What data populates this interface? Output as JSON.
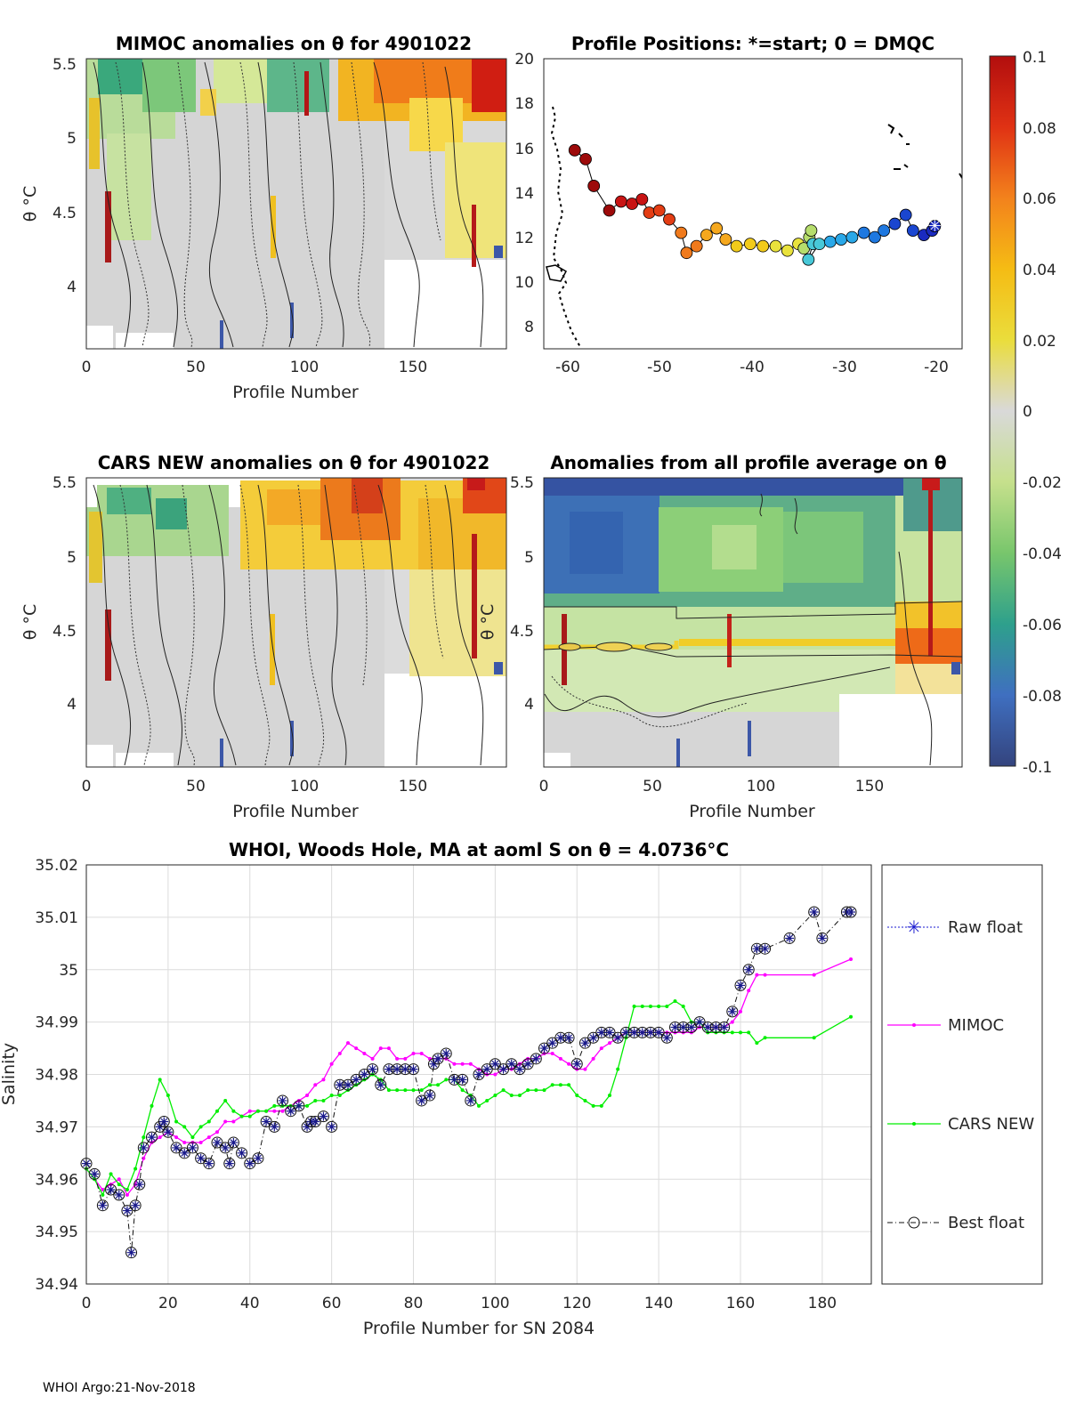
{
  "panels": {
    "mimoc": {
      "title": "MIMOC anomalies on θ  for 4901022",
      "ylabel": "θ °C",
      "xlabel": "Profile Number",
      "yticks": [
        "5.5",
        "5",
        "4.5",
        "4"
      ],
      "xticks": [
        "0",
        "50",
        "100",
        "150"
      ]
    },
    "positions": {
      "title": "Profile Positions: *=start; 0 = DMQC",
      "xticks": [
        "-60",
        "-50",
        "-40",
        "-30",
        "-20"
      ],
      "yticks": [
        "20",
        "18",
        "16",
        "14",
        "12",
        "10",
        "8"
      ],
      "track": [
        [
          -59.6,
          15.9
        ],
        [
          -58.4,
          15.5
        ],
        [
          -57.5,
          14.3
        ],
        [
          -55.8,
          13.2
        ],
        [
          -54.5,
          13.6
        ],
        [
          -53.3,
          13.5
        ],
        [
          -52.2,
          13.7
        ],
        [
          -51.4,
          13.1
        ],
        [
          -50.3,
          13.2
        ],
        [
          -49.2,
          12.8
        ],
        [
          -47.9,
          12.2
        ],
        [
          -47.3,
          11.3
        ],
        [
          -46.2,
          11.6
        ],
        [
          -45.1,
          12.1
        ],
        [
          -44.0,
          12.4
        ],
        [
          -43.0,
          11.9
        ],
        [
          -41.8,
          11.6
        ],
        [
          -40.3,
          11.7
        ],
        [
          -38.9,
          11.6
        ],
        [
          -37.5,
          11.6
        ],
        [
          -36.2,
          11.4
        ],
        [
          -35.0,
          11.7
        ],
        [
          -34.4,
          11.5
        ],
        [
          -33.8,
          12.0
        ],
        [
          -33.6,
          12.3
        ],
        [
          -33.4,
          11.7
        ],
        [
          -33.9,
          11.0
        ],
        [
          -32.7,
          11.7
        ],
        [
          -31.5,
          11.8
        ],
        [
          -30.3,
          11.9
        ],
        [
          -29.1,
          12.0
        ],
        [
          -27.8,
          12.2
        ],
        [
          -26.6,
          12.0
        ],
        [
          -25.6,
          12.3
        ],
        [
          -24.4,
          12.6
        ],
        [
          -23.2,
          13.0
        ],
        [
          -22.4,
          12.3
        ],
        [
          -21.2,
          12.1
        ],
        [
          -20.3,
          12.3
        ],
        [
          -20.0,
          12.5
        ]
      ]
    },
    "colorbar": {
      "ticks": [
        "0.1",
        "0.08",
        "0.06",
        "0.04",
        "0.02",
        "0",
        "-0.02",
        "-0.04",
        "-0.06",
        "-0.08",
        "-0.1"
      ]
    },
    "cars": {
      "title": "CARS NEW anomalies on θ for 4901022",
      "ylabel": "θ °C",
      "xlabel": "Profile Number",
      "yticks": [
        "5.5",
        "5",
        "4.5",
        "4"
      ],
      "xticks": [
        "0",
        "50",
        "100",
        "150"
      ]
    },
    "avg": {
      "title": "Anomalies from all profile average on θ",
      "ylabel": "θ °C",
      "xlabel": "Profile Number",
      "yticks": [
        "5.5",
        "5",
        "4.5",
        "4"
      ],
      "xticks": [
        "0",
        "50",
        "100",
        "150"
      ]
    }
  },
  "chart_data": {
    "type": "line",
    "title": "WHOI, Woods Hole, MA at aoml S on θ = 4.0736°C",
    "xlabel": "Profile Number for SN 2084",
    "ylabel": "Salinity",
    "xlim": [
      0,
      192
    ],
    "ylim": [
      34.94,
      35.02
    ],
    "xticks": [
      "0",
      "20",
      "40",
      "60",
      "80",
      "100",
      "120",
      "140",
      "160",
      "180"
    ],
    "yticks": [
      "35.02",
      "35.01",
      "35",
      "34.99",
      "34.98",
      "34.97",
      "34.96",
      "34.95",
      "34.94"
    ],
    "legend": [
      "Raw float",
      "MIMOC",
      "CARS NEW",
      "Best float"
    ],
    "series": [
      {
        "name": "Raw float / Best float",
        "color": "#1a1a8c",
        "x": [
          0,
          2,
          4,
          6,
          8,
          10,
          11,
          12,
          13,
          14,
          16,
          18,
          19,
          20,
          22,
          24,
          26,
          28,
          30,
          32,
          34,
          35,
          36,
          38,
          40,
          42,
          44,
          46,
          48,
          50,
          52,
          54,
          55,
          56,
          58,
          60,
          62,
          64,
          66,
          68,
          70,
          72,
          74,
          76,
          78,
          80,
          82,
          84,
          85,
          86,
          88,
          90,
          92,
          94,
          96,
          98,
          100,
          102,
          104,
          106,
          108,
          110,
          112,
          114,
          116,
          118,
          120,
          122,
          124,
          126,
          128,
          130,
          132,
          134,
          136,
          138,
          140,
          142,
          144,
          146,
          148,
          150,
          152,
          154,
          156,
          158,
          160,
          162,
          164,
          166,
          172,
          178,
          180,
          186,
          187
        ],
        "y": [
          34.963,
          34.961,
          34.955,
          34.958,
          34.957,
          34.954,
          34.946,
          34.955,
          34.959,
          34.966,
          34.968,
          34.97,
          34.971,
          34.969,
          34.966,
          34.965,
          34.966,
          34.964,
          34.963,
          34.967,
          34.966,
          34.963,
          34.967,
          34.965,
          34.963,
          34.964,
          34.971,
          34.97,
          34.975,
          34.973,
          34.974,
          34.97,
          34.971,
          34.971,
          34.972,
          34.97,
          34.978,
          34.978,
          34.979,
          34.98,
          34.981,
          34.978,
          34.981,
          34.981,
          34.981,
          34.981,
          34.975,
          34.976,
          34.982,
          34.983,
          34.984,
          34.979,
          34.979,
          34.975,
          34.98,
          34.981,
          34.982,
          34.981,
          34.982,
          34.981,
          34.982,
          34.983,
          34.985,
          34.986,
          34.987,
          34.987,
          34.982,
          34.986,
          34.987,
          34.988,
          34.988,
          34.987,
          34.988,
          34.988,
          34.988,
          34.988,
          34.988,
          34.987,
          34.989,
          34.989,
          34.989,
          34.99,
          34.989,
          34.989,
          34.989,
          34.992,
          34.997,
          35.0,
          35.004,
          35.004,
          35.006,
          35.011,
          35.006,
          35.011,
          35.011
        ]
      },
      {
        "name": "MIMOC",
        "color": "#ff00ff",
        "x": [
          0,
          2,
          4,
          6,
          8,
          10,
          12,
          14,
          16,
          18,
          20,
          22,
          24,
          26,
          28,
          30,
          32,
          34,
          36,
          38,
          40,
          42,
          44,
          46,
          48,
          50,
          52,
          54,
          56,
          58,
          60,
          62,
          64,
          66,
          68,
          70,
          72,
          74,
          76,
          78,
          80,
          82,
          84,
          86,
          88,
          90,
          92,
          94,
          96,
          98,
          100,
          102,
          104,
          106,
          108,
          110,
          112,
          114,
          116,
          118,
          120,
          122,
          124,
          126,
          128,
          130,
          132,
          134,
          136,
          138,
          140,
          142,
          144,
          146,
          148,
          150,
          152,
          154,
          156,
          158,
          160,
          162,
          164,
          166,
          178,
          187
        ],
        "y": [
          34.962,
          34.96,
          34.958,
          34.959,
          34.96,
          34.957,
          34.959,
          34.964,
          34.967,
          34.968,
          34.969,
          34.968,
          34.967,
          34.967,
          34.967,
          34.968,
          34.969,
          34.971,
          34.971,
          34.972,
          34.973,
          34.973,
          34.973,
          34.973,
          34.973,
          34.974,
          34.975,
          34.976,
          34.978,
          34.979,
          34.982,
          34.984,
          34.986,
          34.985,
          34.984,
          34.983,
          34.985,
          34.985,
          34.983,
          34.983,
          34.984,
          34.984,
          34.983,
          34.983,
          34.983,
          34.982,
          34.982,
          34.982,
          34.981,
          34.98,
          34.98,
          34.981,
          34.981,
          34.982,
          34.983,
          34.983,
          34.984,
          34.984,
          34.983,
          34.982,
          34.981,
          34.981,
          34.983,
          34.985,
          34.986,
          34.987,
          34.988,
          34.988,
          34.988,
          34.988,
          34.988,
          34.988,
          34.988,
          34.988,
          34.988,
          34.989,
          34.989,
          34.989,
          34.989,
          34.99,
          34.992,
          34.996,
          34.999,
          34.999,
          34.999,
          35.002
        ]
      },
      {
        "name": "CARS NEW",
        "color": "#00ee00",
        "x": [
          0,
          2,
          4,
          6,
          8,
          10,
          12,
          14,
          16,
          18,
          20,
          22,
          24,
          26,
          28,
          30,
          32,
          34,
          36,
          38,
          40,
          42,
          44,
          46,
          48,
          50,
          52,
          54,
          56,
          58,
          60,
          62,
          64,
          66,
          68,
          70,
          72,
          74,
          76,
          78,
          80,
          82,
          84,
          86,
          88,
          90,
          92,
          94,
          96,
          98,
          100,
          102,
          104,
          106,
          108,
          110,
          112,
          114,
          116,
          118,
          120,
          122,
          124,
          126,
          128,
          130,
          132,
          134,
          136,
          138,
          140,
          142,
          144,
          146,
          148,
          150,
          152,
          154,
          156,
          158,
          160,
          162,
          164,
          166,
          178,
          187
        ],
        "y": [
          34.962,
          34.96,
          34.957,
          34.961,
          34.959,
          34.958,
          34.962,
          34.968,
          34.974,
          34.979,
          34.976,
          34.971,
          34.97,
          34.968,
          34.97,
          34.971,
          34.973,
          34.975,
          34.973,
          34.972,
          34.972,
          34.973,
          34.973,
          34.974,
          34.974,
          34.974,
          34.974,
          34.974,
          34.975,
          34.975,
          34.976,
          34.976,
          34.977,
          34.978,
          34.979,
          34.98,
          34.979,
          34.977,
          34.977,
          34.977,
          34.977,
          34.977,
          34.978,
          34.978,
          34.979,
          34.979,
          34.977,
          34.976,
          34.974,
          34.975,
          34.976,
          34.977,
          34.976,
          34.976,
          34.977,
          34.977,
          34.977,
          34.978,
          34.978,
          34.978,
          34.976,
          34.975,
          34.974,
          34.974,
          34.976,
          34.981,
          34.987,
          34.993,
          34.993,
          34.993,
          34.993,
          34.993,
          34.994,
          34.993,
          34.99,
          34.99,
          34.988,
          34.988,
          34.988,
          34.988,
          34.988,
          34.988,
          34.986,
          34.987,
          34.987,
          34.991
        ]
      }
    ]
  },
  "footer": "WHOI Argo:21-Nov-2018"
}
